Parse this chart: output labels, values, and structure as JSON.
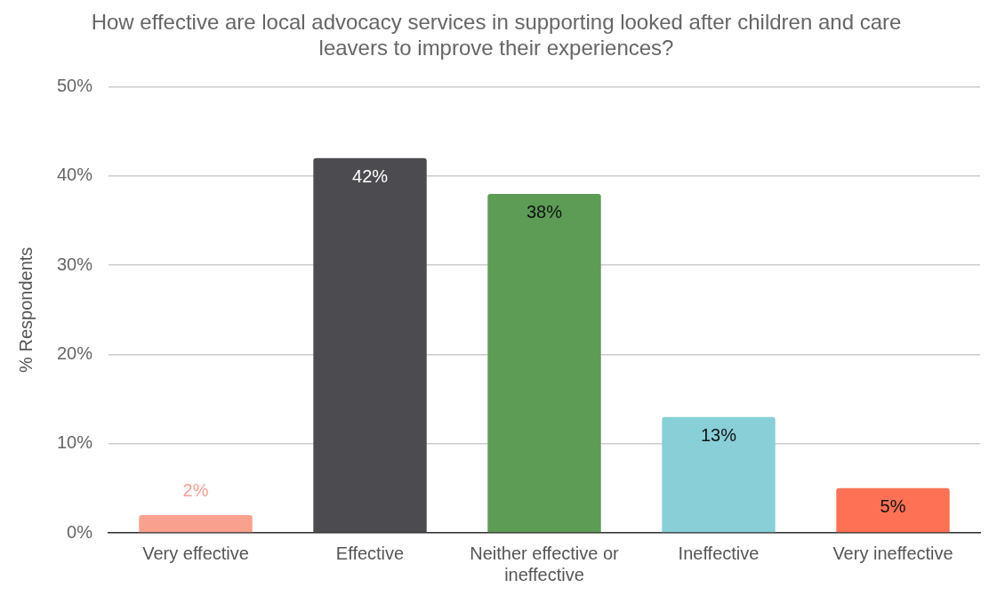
{
  "chart_data": {
    "type": "bar",
    "title": "How effective are local advocacy services in supporting looked after children and care leavers to improve their experiences?",
    "ylabel": "% Respondents",
    "categories": [
      "Very effective",
      "Effective",
      "Neither effective or ineffective",
      "Ineffective",
      "Very ineffective"
    ],
    "values": [
      2,
      42,
      38,
      13,
      5
    ],
    "colors": [
      "#f9a08f",
      "#4b4b50",
      "#5c9c55",
      "#88cfd8",
      "#ff7155"
    ],
    "value_labels": [
      "2%",
      "42%",
      "38%",
      "13%",
      "5%"
    ],
    "ylim": [
      0,
      50
    ],
    "yticks": [
      {
        "value": 0,
        "label": "0%"
      },
      {
        "value": 10,
        "label": "10%"
      },
      {
        "value": 20,
        "label": "20%"
      },
      {
        "value": 30,
        "label": "30%"
      },
      {
        "value": 40,
        "label": "40%"
      },
      {
        "value": 50,
        "label": "50%"
      }
    ],
    "grid": "y",
    "legend": false
  }
}
